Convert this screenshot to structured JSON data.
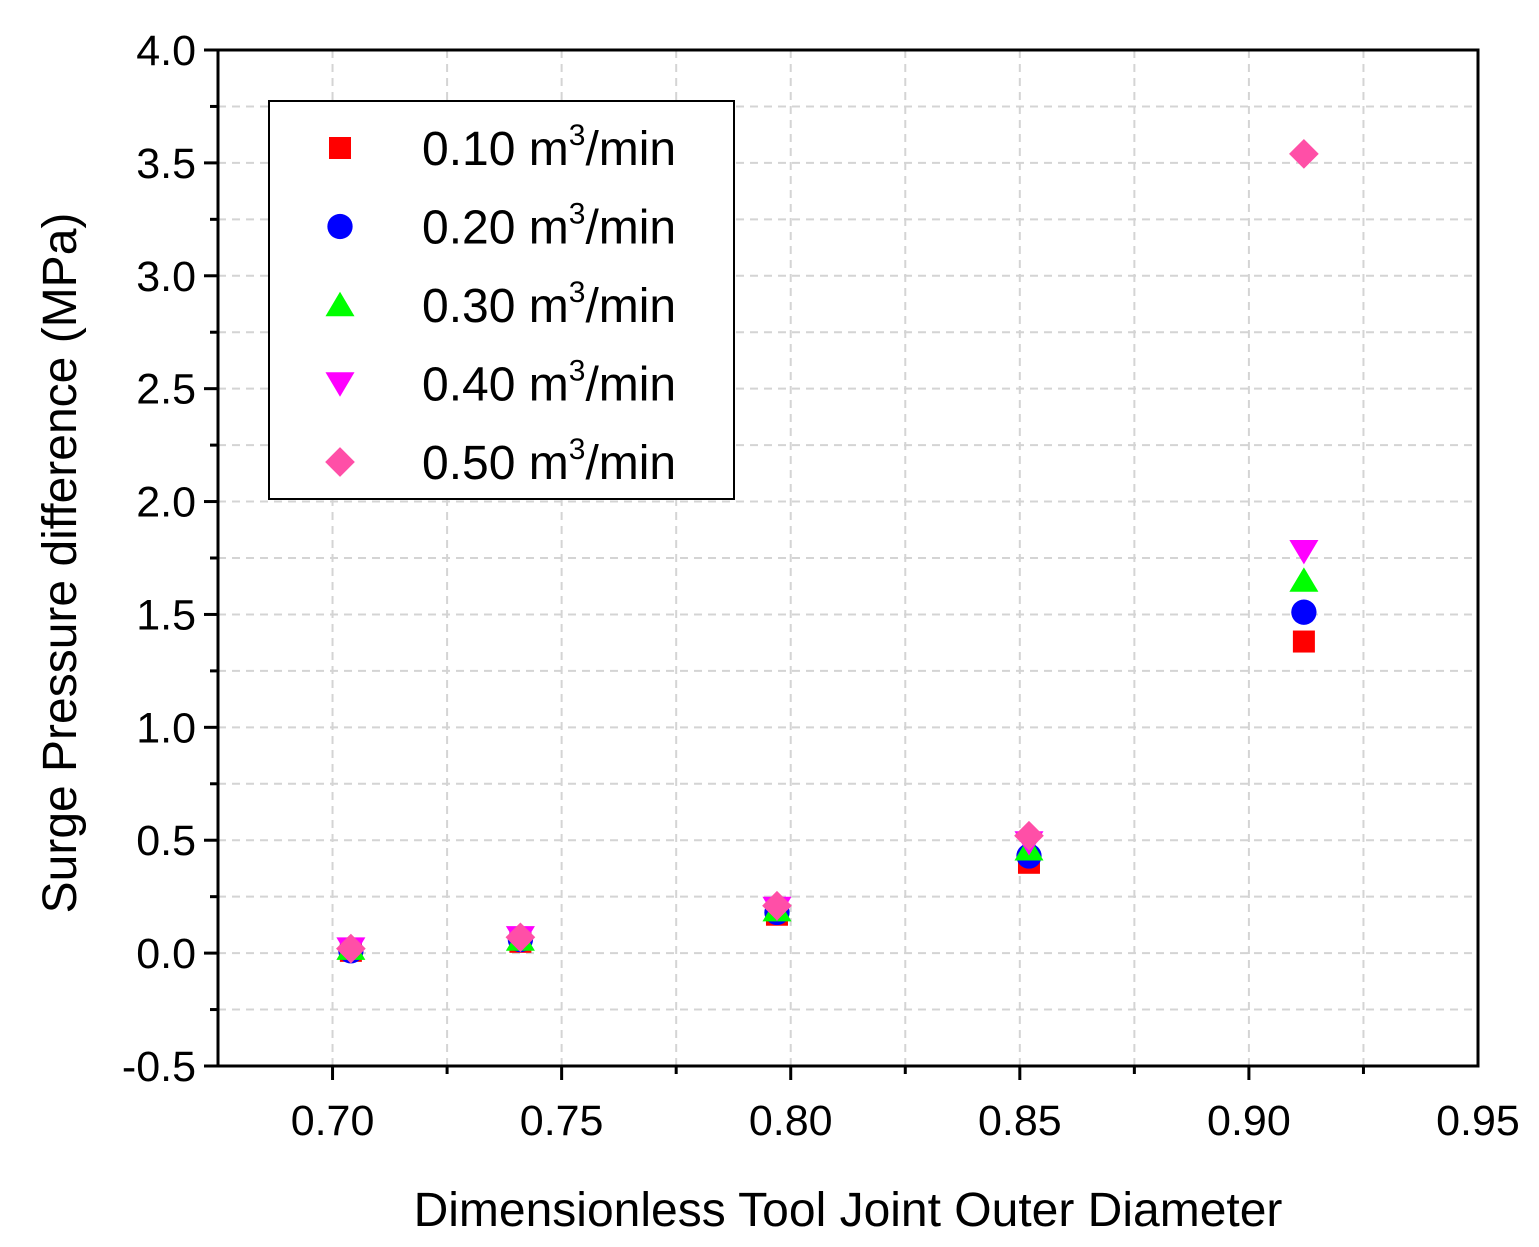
{
  "chart_data": {
    "type": "scatter",
    "title": "",
    "xlabel": "Dimensionless Tool Joint Outer Diameter",
    "ylabel": "Surge Pressure difference (MPa)",
    "xlim": [
      0.675,
      0.95
    ],
    "ylim": [
      -0.5,
      4.0
    ],
    "xticks": [
      "0.70",
      "0.75",
      "0.80",
      "0.85",
      "0.90",
      "0.95"
    ],
    "yticks": [
      "-0.5",
      "0.0",
      "0.5",
      "1.0",
      "1.5",
      "2.0",
      "2.5",
      "3.0",
      "3.5",
      "4.0"
    ],
    "grid": true,
    "legend_position": "top-left",
    "legend_unit_base": "m",
    "legend_unit_exp": "3",
    "legend_unit_tail": "/min",
    "x": [
      0.704,
      0.741,
      0.797,
      0.852,
      0.912
    ],
    "series": [
      {
        "name": "0.10",
        "marker": "square",
        "color": "#ff0000",
        "values": [
          0.01,
          0.05,
          0.17,
          0.4,
          1.38
        ]
      },
      {
        "name": "0.20",
        "marker": "circle",
        "color": "#0000ff",
        "values": [
          0.01,
          0.06,
          0.18,
          0.43,
          1.51
        ]
      },
      {
        "name": "0.30",
        "marker": "triangle-up",
        "color": "#00ff00",
        "values": [
          0.02,
          0.06,
          0.19,
          0.46,
          1.65
        ]
      },
      {
        "name": "0.40",
        "marker": "triangle-down",
        "color": "#ff00ff",
        "values": [
          0.02,
          0.07,
          0.2,
          0.49,
          1.78
        ]
      },
      {
        "name": "0.50",
        "marker": "diamond",
        "color": "#ff4fa7",
        "values": [
          0.02,
          0.07,
          0.21,
          0.52,
          3.54
        ]
      }
    ]
  }
}
